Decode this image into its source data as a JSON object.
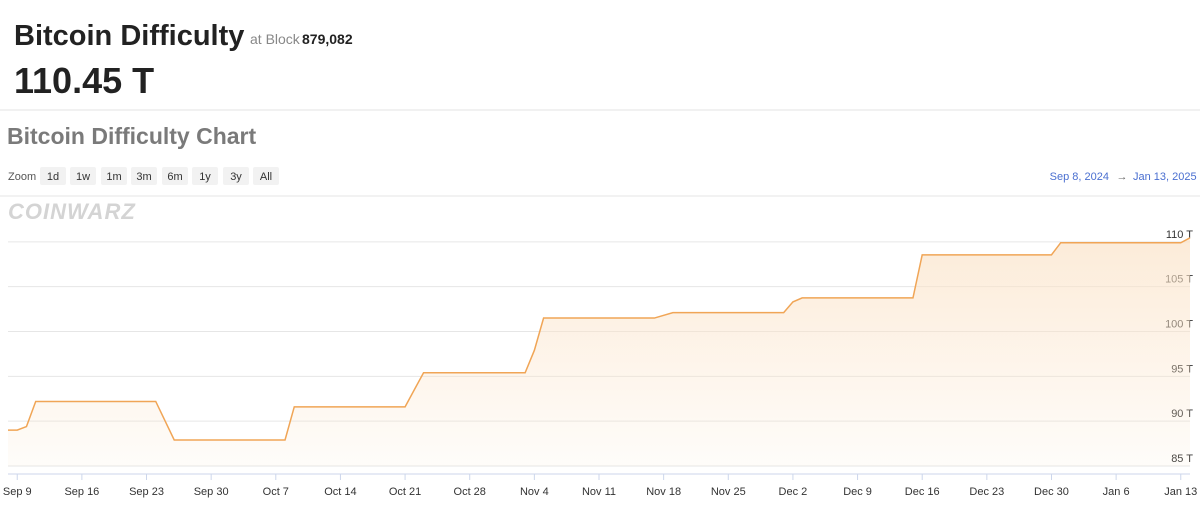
{
  "header": {
    "title": "Bitcoin Difficulty",
    "block_prefix": "at Block",
    "block": "879,082",
    "value": "110.45 T"
  },
  "controls": {
    "zoom_label": "Zoom",
    "zoom_options": [
      "1d",
      "1w",
      "1m",
      "3m",
      "6m",
      "1y",
      "3y",
      "All"
    ],
    "range_from": "Sep 8, 2024",
    "range_arrow": "→",
    "range_to": "Jan 13, 2025",
    "watermark": "COINWARZ"
  },
  "chart_data": {
    "type": "line",
    "title": "Bitcoin Difficulty Chart",
    "color": "#f0a556",
    "grid": true,
    "x": [
      "2024-09-08",
      "2024-09-09",
      "2024-09-10",
      "2024-09-11",
      "2024-09-24",
      "2024-09-26",
      "2024-10-08",
      "2024-10-09",
      "2024-10-21",
      "2024-10-22",
      "2024-10-23",
      "2024-11-03",
      "2024-11-04",
      "2024-11-05",
      "2024-11-17",
      "2024-11-19",
      "2024-12-01",
      "2024-12-02",
      "2024-12-03",
      "2024-12-15",
      "2024-12-16",
      "2024-12-30",
      "2024-12-31",
      "2025-01-13",
      "2025-01-14"
    ],
    "values": [
      89.0,
      89.0,
      89.4,
      92.2,
      92.2,
      87.9,
      87.9,
      91.6,
      91.6,
      93.5,
      95.4,
      95.4,
      97.9,
      101.5,
      101.5,
      102.1,
      102.1,
      103.3,
      103.75,
      103.75,
      108.55,
      108.55,
      109.9,
      109.9,
      110.45
    ],
    "xlim": [
      "2024-09-08",
      "2025-01-14"
    ],
    "xticks": [
      {
        "value": "2024-09-09",
        "label": "Sep 9"
      },
      {
        "value": "2024-09-16",
        "label": "Sep 16"
      },
      {
        "value": "2024-09-23",
        "label": "Sep 23"
      },
      {
        "value": "2024-09-30",
        "label": "Sep 30"
      },
      {
        "value": "2024-10-07",
        "label": "Oct 7"
      },
      {
        "value": "2024-10-14",
        "label": "Oct 14"
      },
      {
        "value": "2024-10-21",
        "label": "Oct 21"
      },
      {
        "value": "2024-10-28",
        "label": "Oct 28"
      },
      {
        "value": "2024-11-04",
        "label": "Nov 4"
      },
      {
        "value": "2024-11-11",
        "label": "Nov 11"
      },
      {
        "value": "2024-11-18",
        "label": "Nov 18"
      },
      {
        "value": "2024-11-25",
        "label": "Nov 25"
      },
      {
        "value": "2024-12-02",
        "label": "Dec 2"
      },
      {
        "value": "2024-12-09",
        "label": "Dec 9"
      },
      {
        "value": "2024-12-16",
        "label": "Dec 16"
      },
      {
        "value": "2024-12-23",
        "label": "Dec 23"
      },
      {
        "value": "2024-12-30",
        "label": "Dec 30"
      },
      {
        "value": "2025-01-06",
        "label": "Jan 6"
      },
      {
        "value": "2025-01-13",
        "label": "Jan 13"
      }
    ],
    "ylim": [
      85,
      115
    ],
    "yticks": [
      {
        "value": 85,
        "label": "85 T"
      },
      {
        "value": 90,
        "label": "90 T"
      },
      {
        "value": 95,
        "label": "95 T"
      },
      {
        "value": 100,
        "label": "100 T"
      },
      {
        "value": 105,
        "label": "105 T"
      },
      {
        "value": 110,
        "label": "110 T"
      }
    ]
  }
}
